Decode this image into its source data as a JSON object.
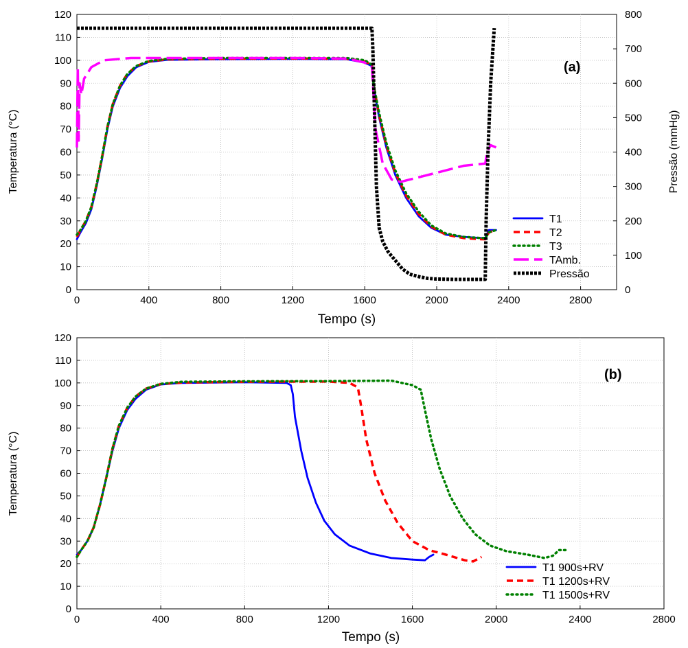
{
  "chart_data": [
    {
      "type": "line",
      "panel_label": "(a)",
      "xlabel": "Tempo (s)",
      "ylabel": "Temperatura (°C)",
      "y2label": "Pressão (mmHg)",
      "xlim": [
        0,
        3000
      ],
      "ylim": [
        0,
        120
      ],
      "y2lim": [
        0,
        800
      ],
      "xticks": [
        0,
        400,
        800,
        1200,
        1600,
        2000,
        2400,
        2800
      ],
      "yticks": [
        0,
        10,
        20,
        30,
        40,
        50,
        60,
        70,
        80,
        90,
        100,
        110,
        120
      ],
      "y2ticks": [
        0,
        100,
        200,
        300,
        400,
        500,
        600,
        700,
        800
      ],
      "grid": true,
      "legend_position": "bottom-right",
      "series": [
        {
          "name": "T1",
          "color": "#0000ff",
          "dash": "solid",
          "axis": "left",
          "points": [
            [
              0,
              22
            ],
            [
              20,
              25
            ],
            [
              50,
              29
            ],
            [
              80,
              35
            ],
            [
              110,
              45
            ],
            [
              140,
              57
            ],
            [
              170,
              70
            ],
            [
              200,
              80
            ],
            [
              240,
              88
            ],
            [
              280,
              93
            ],
            [
              330,
              97
            ],
            [
              400,
              99.3
            ],
            [
              500,
              100.2
            ],
            [
              800,
              100.5
            ],
            [
              1200,
              100.6
            ],
            [
              1500,
              100.5
            ],
            [
              1600,
              99
            ],
            [
              1640,
              97.5
            ],
            [
              1650,
              88
            ],
            [
              1680,
              75
            ],
            [
              1720,
              62
            ],
            [
              1770,
              50
            ],
            [
              1830,
              40
            ],
            [
              1900,
              32
            ],
            [
              1970,
              27
            ],
            [
              2050,
              24
            ],
            [
              2150,
              23
            ],
            [
              2250,
              22.5
            ],
            [
              2270,
              22.5
            ],
            [
              2290,
              26
            ],
            [
              2330,
              26
            ]
          ]
        },
        {
          "name": "T2",
          "color": "#ff0000",
          "dash": "red",
          "axis": "left",
          "points": [
            [
              0,
              23
            ],
            [
              20,
              26
            ],
            [
              50,
              30
            ],
            [
              80,
              36
            ],
            [
              110,
              46
            ],
            [
              140,
              58
            ],
            [
              170,
              71
            ],
            [
              200,
              81
            ],
            [
              240,
              89
            ],
            [
              280,
              94
            ],
            [
              330,
              97.5
            ],
            [
              400,
              99.5
            ],
            [
              500,
              100.4
            ],
            [
              800,
              100.7
            ],
            [
              1200,
              100.8
            ],
            [
              1500,
              100.7
            ],
            [
              1600,
              99.5
            ],
            [
              1640,
              98
            ],
            [
              1650,
              89
            ],
            [
              1680,
              76
            ],
            [
              1720,
              63
            ],
            [
              1770,
              51
            ],
            [
              1830,
              41
            ],
            [
              1900,
              33
            ],
            [
              1970,
              27.5
            ],
            [
              2050,
              24
            ],
            [
              2150,
              22.5
            ],
            [
              2250,
              22
            ],
            [
              2270,
              22
            ],
            [
              2290,
              25
            ],
            [
              2330,
              26
            ]
          ]
        },
        {
          "name": "T3",
          "color": "#008000",
          "dash": "dot",
          "axis": "left",
          "points": [
            [
              0,
              24
            ],
            [
              20,
              26
            ],
            [
              50,
              30
            ],
            [
              80,
              36
            ],
            [
              110,
              46
            ],
            [
              140,
              58
            ],
            [
              170,
              71
            ],
            [
              200,
              81
            ],
            [
              240,
              89
            ],
            [
              280,
              94
            ],
            [
              330,
              97.5
            ],
            [
              400,
              99.7
            ],
            [
              500,
              100.6
            ],
            [
              800,
              101
            ],
            [
              1200,
              101
            ],
            [
              1500,
              101
            ],
            [
              1600,
              100
            ],
            [
              1640,
              98
            ],
            [
              1650,
              89
            ],
            [
              1680,
              77
            ],
            [
              1720,
              64
            ],
            [
              1770,
              52
            ],
            [
              1830,
              42
            ],
            [
              1900,
              34
            ],
            [
              1970,
              28
            ],
            [
              2050,
              24.5
            ],
            [
              2150,
              23
            ],
            [
              2250,
              22.5
            ],
            [
              2270,
              22.5
            ],
            [
              2290,
              25
            ],
            [
              2330,
              26
            ]
          ]
        },
        {
          "name": "TAmb.",
          "color": "#ff00ff",
          "dash": "long",
          "axis": "left",
          "points": [
            [
              0,
              62
            ],
            [
              5,
              97
            ],
            [
              10,
              65
            ],
            [
              15,
              90
            ],
            [
              25,
              85
            ],
            [
              40,
              92
            ],
            [
              80,
              97
            ],
            [
              150,
              100
            ],
            [
              300,
              101
            ],
            [
              800,
              101
            ],
            [
              1200,
              101
            ],
            [
              1500,
              100.8
            ],
            [
              1600,
              99
            ],
            [
              1640,
              97
            ],
            [
              1660,
              70
            ],
            [
              1700,
              55
            ],
            [
              1750,
              48
            ],
            [
              1800,
              47
            ],
            [
              1850,
              48
            ],
            [
              2000,
              51
            ],
            [
              2150,
              54
            ],
            [
              2270,
              55
            ],
            [
              2280,
              60
            ],
            [
              2300,
              63
            ],
            [
              2330,
              62
            ]
          ]
        },
        {
          "name": "Pressão",
          "color": "#000000",
          "dash": "dense",
          "axis": "right",
          "points": [
            [
              0,
              760
            ],
            [
              1640,
              760
            ],
            [
              1645,
              700
            ],
            [
              1655,
              500
            ],
            [
              1665,
              300
            ],
            [
              1680,
              180
            ],
            [
              1700,
              140
            ],
            [
              1730,
              110
            ],
            [
              1770,
              85
            ],
            [
              1810,
              60
            ],
            [
              1850,
              45
            ],
            [
              1900,
              38
            ],
            [
              1950,
              33
            ],
            [
              2000,
              31
            ],
            [
              2100,
              30
            ],
            [
              2270,
              30
            ],
            [
              2275,
              200
            ],
            [
              2285,
              400
            ],
            [
              2300,
              600
            ],
            [
              2320,
              760
            ]
          ]
        }
      ]
    },
    {
      "type": "line",
      "panel_label": "(b)",
      "xlabel": "Tempo (s)",
      "ylabel": "Temperatura (°C)",
      "xlim": [
        0,
        2800
      ],
      "ylim": [
        0,
        120
      ],
      "xticks": [
        0,
        400,
        800,
        1200,
        1600,
        2000,
        2400,
        2800
      ],
      "yticks": [
        0,
        10,
        20,
        30,
        40,
        50,
        60,
        70,
        80,
        90,
        100,
        110,
        120
      ],
      "grid": true,
      "legend_position": "bottom-right",
      "series": [
        {
          "name": "T1 900s+RV",
          "color": "#0000ff",
          "dash": "solid",
          "points": [
            [
              0,
              24
            ],
            [
              20,
              26
            ],
            [
              50,
              30
            ],
            [
              80,
              36
            ],
            [
              110,
              46
            ],
            [
              140,
              58
            ],
            [
              170,
              70
            ],
            [
              200,
              80
            ],
            [
              240,
              88
            ],
            [
              280,
              93
            ],
            [
              330,
              97
            ],
            [
              400,
              99.3
            ],
            [
              500,
              100
            ],
            [
              800,
              100.3
            ],
            [
              1000,
              100
            ],
            [
              1020,
              99
            ],
            [
              1030,
              95
            ],
            [
              1040,
              85
            ],
            [
              1070,
              70
            ],
            [
              1100,
              58
            ],
            [
              1140,
              47
            ],
            [
              1180,
              39
            ],
            [
              1230,
              33
            ],
            [
              1300,
              28
            ],
            [
              1400,
              24.5
            ],
            [
              1500,
              22.5
            ],
            [
              1600,
              21.8
            ],
            [
              1660,
              21.5
            ],
            [
              1680,
              23
            ],
            [
              1700,
              24
            ]
          ]
        },
        {
          "name": "T1 1200s+RV",
          "color": "#ff0000",
          "dash": "red",
          "points": [
            [
              0,
              23
            ],
            [
              20,
              26
            ],
            [
              50,
              30
            ],
            [
              80,
              36
            ],
            [
              110,
              46
            ],
            [
              140,
              58
            ],
            [
              170,
              71
            ],
            [
              200,
              81
            ],
            [
              240,
              89
            ],
            [
              280,
              94
            ],
            [
              330,
              97.5
            ],
            [
              400,
              99.5
            ],
            [
              500,
              100.2
            ],
            [
              800,
              100.5
            ],
            [
              1200,
              100.6
            ],
            [
              1300,
              100
            ],
            [
              1340,
              98
            ],
            [
              1355,
              90
            ],
            [
              1380,
              75
            ],
            [
              1420,
              60
            ],
            [
              1470,
              48
            ],
            [
              1530,
              38
            ],
            [
              1600,
              30
            ],
            [
              1680,
              26
            ],
            [
              1760,
              24
            ],
            [
              1850,
              21.5
            ],
            [
              1890,
              21
            ],
            [
              1910,
              22
            ],
            [
              1930,
              23
            ]
          ]
        },
        {
          "name": "T1 1500s+RV",
          "color": "#008000",
          "dash": "dot",
          "points": [
            [
              0,
              23
            ],
            [
              20,
              26
            ],
            [
              50,
              30
            ],
            [
              80,
              36
            ],
            [
              110,
              46
            ],
            [
              140,
              58
            ],
            [
              170,
              71
            ],
            [
              200,
              81
            ],
            [
              240,
              89
            ],
            [
              280,
              94
            ],
            [
              330,
              97.5
            ],
            [
              400,
              99.6
            ],
            [
              500,
              100.5
            ],
            [
              800,
              100.7
            ],
            [
              1200,
              100.8
            ],
            [
              1500,
              101
            ],
            [
              1600,
              99
            ],
            [
              1640,
              97
            ],
            [
              1660,
              88
            ],
            [
              1690,
              75
            ],
            [
              1730,
              62
            ],
            [
              1780,
              50
            ],
            [
              1840,
              40
            ],
            [
              1900,
              33
            ],
            [
              1970,
              28
            ],
            [
              2050,
              25.5
            ],
            [
              2150,
              24
            ],
            [
              2230,
              22.5
            ],
            [
              2270,
              23.5
            ],
            [
              2300,
              26
            ],
            [
              2330,
              26
            ]
          ]
        }
      ]
    }
  ]
}
